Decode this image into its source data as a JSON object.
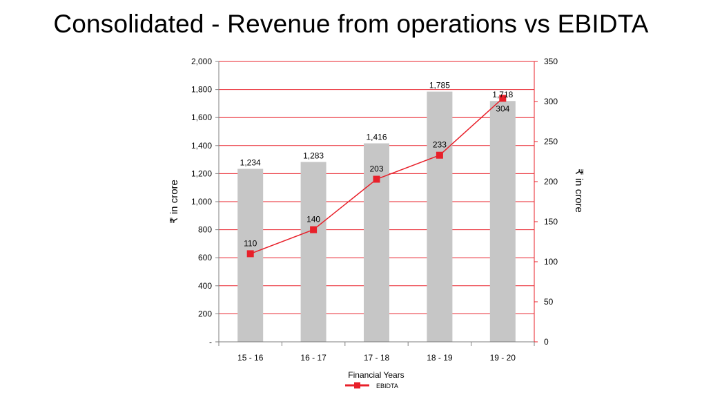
{
  "title": "Consolidated - Revenue from operations vs EBIDTA",
  "chart_data": {
    "type": "bar",
    "title": "Consolidated - Revenue from operations vs EBIDTA",
    "categories": [
      "15 - 16",
      "16 - 17",
      "17 - 18",
      "18 - 19",
      "19 - 20"
    ],
    "xlabel": "Financial Years",
    "ylabel": "₹ in crore",
    "y2label": "₹ in crore",
    "ylim": [
      0,
      2000
    ],
    "y2lim": [
      0,
      350
    ],
    "y_ticks": [
      "-",
      "200",
      "400",
      "600",
      "800",
      "1,000",
      "1,200",
      "1,400",
      "1,600",
      "1,800",
      "2,000"
    ],
    "y2_ticks": [
      "0",
      "50",
      "100",
      "150",
      "200",
      "250",
      "300",
      "350"
    ],
    "grid": true,
    "legend_position": "bottom",
    "series": [
      {
        "type": "bar",
        "axis": "left",
        "values": [
          1234,
          1283,
          1416,
          1785,
          1718
        ],
        "labels": [
          "1,234",
          "1,283",
          "1,416",
          "1,785",
          "1,718"
        ],
        "color": "#c6c6c6"
      },
      {
        "name": "EBIDTA",
        "type": "line",
        "axis": "right",
        "values": [
          110,
          140,
          203,
          233,
          304
        ],
        "labels": [
          "110",
          "140",
          "203",
          "233",
          "304"
        ],
        "color": "#e8202a"
      }
    ]
  },
  "colors": {
    "grid": "#e8202a",
    "bar": "#c6c6c6",
    "line": "#e8202a",
    "axis": "#7f7f7f"
  }
}
